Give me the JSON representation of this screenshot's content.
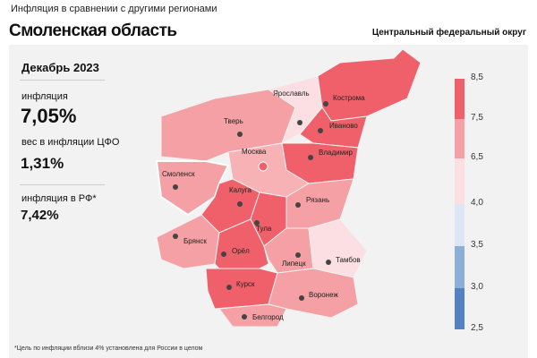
{
  "header": {
    "subtitle": "Инфляция в сравнении с другими регионами",
    "title": "Смоленская область",
    "district": "Центральный федеральный округ"
  },
  "stats": {
    "period": "Декабрь 2023",
    "inflation_label": "инфляция",
    "inflation_value": "7,05%",
    "weight_label": "вес в инфляции ЦФО",
    "weight_value": "1,31%",
    "rf_label": "инфляция в РФ*",
    "rf_value": "7,42%"
  },
  "footnote": "*Цель по инфляции вблизи 4% установлена для России в целом",
  "legend": {
    "ticks": [
      "8,5",
      "7,5",
      "6,5",
      "4,0",
      "3,5",
      "3,0",
      "2,5"
    ],
    "colors": [
      "#f0606a",
      "#f4a0a4",
      "#fbdfe2",
      "#dde6f4",
      "#8daed6",
      "#5482c0"
    ]
  },
  "regions": [
    {
      "name": "Тверь",
      "color": "#f4a0a4"
    },
    {
      "name": "Ярославль",
      "color": "#fbdfe2"
    },
    {
      "name": "Кострома",
      "color": "#f0606a"
    },
    {
      "name": "Иваново",
      "color": "#f0606a"
    },
    {
      "name": "Владимир",
      "color": "#f0606a"
    },
    {
      "name": "Москва",
      "color": "#f6b2b5"
    },
    {
      "name": "Смоленск",
      "color": "#f4a0a4"
    },
    {
      "name": "Калуга",
      "color": "#f0606a"
    },
    {
      "name": "Тула",
      "color": "#f0606a"
    },
    {
      "name": "Рязань",
      "color": "#f4a0a4"
    },
    {
      "name": "Брянск",
      "color": "#f4a0a4"
    },
    {
      "name": "Орёл",
      "color": "#f0606a"
    },
    {
      "name": "Липецк",
      "color": "#f4a0a4"
    },
    {
      "name": "Тамбов",
      "color": "#fbdfe2"
    },
    {
      "name": "Курск",
      "color": "#f0606a"
    },
    {
      "name": "Воронеж",
      "color": "#f4a0a4"
    },
    {
      "name": "Белгород",
      "color": "#f4a0a4"
    }
  ]
}
